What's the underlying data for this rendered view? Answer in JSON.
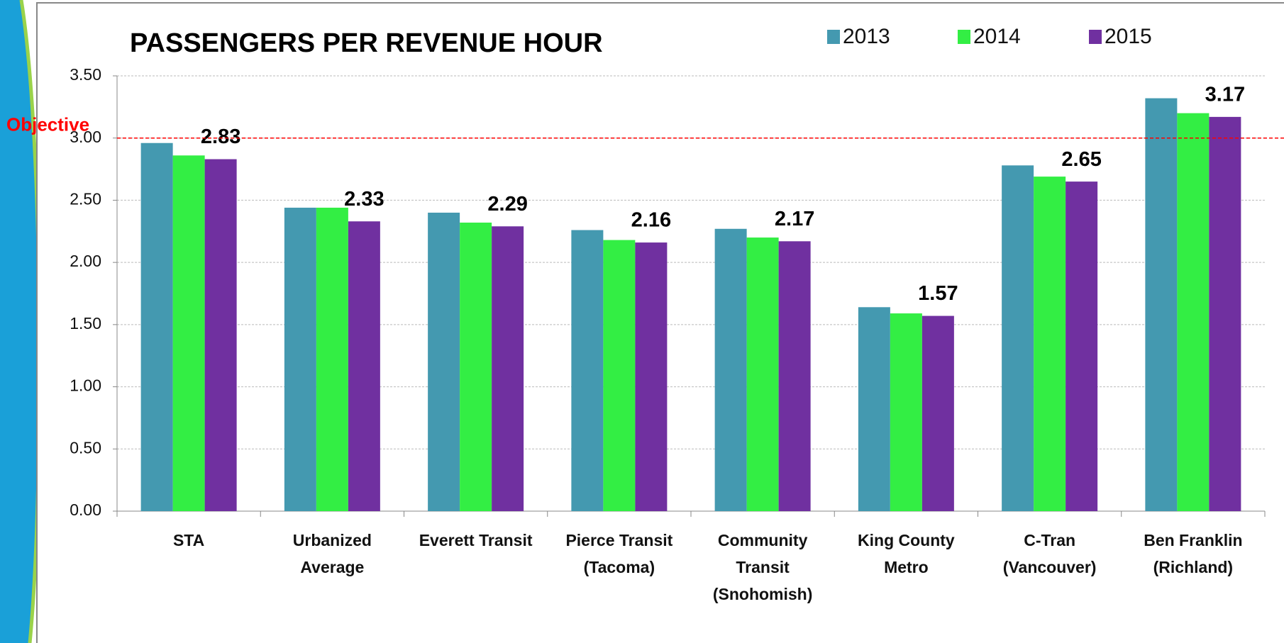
{
  "chart_data": {
    "type": "bar",
    "title": "PASSENGERS PER REVENUE HOUR",
    "categories": [
      "STA",
      "Urbanized\nAverage",
      "Everett Transit",
      "Pierce Transit\n(Tacoma)",
      "Community\nTransit\n(Snohomish)",
      "King County Metro",
      "C-Tran\n(Vancouver)",
      "Ben Franklin\n(Richland)"
    ],
    "series": [
      {
        "name": "2013",
        "color": "#4499b0",
        "values": [
          2.96,
          2.44,
          2.4,
          2.26,
          2.27,
          1.64,
          2.78,
          3.32
        ]
      },
      {
        "name": "2014",
        "color": "#33ee44",
        "values": [
          2.86,
          2.44,
          2.32,
          2.18,
          2.2,
          1.59,
          2.69,
          3.2
        ]
      },
      {
        "name": "2015",
        "color": "#7030a0",
        "values": [
          2.83,
          2.33,
          2.29,
          2.16,
          2.17,
          1.57,
          2.65,
          3.17
        ],
        "labeled": true
      }
    ],
    "ylim": [
      0,
      3.5
    ],
    "yticks": [
      {
        "value": 0,
        "label": "0.00"
      },
      {
        "value": 0.5,
        "label": "0.50"
      },
      {
        "value": 1,
        "label": "1.00"
      },
      {
        "value": 1.5,
        "label": "1.50"
      },
      {
        "value": 2,
        "label": "2.00"
      },
      {
        "value": 2.5,
        "label": "2.50"
      },
      {
        "value": 3,
        "label": "3.00"
      },
      {
        "value": 3.5,
        "label": "3.50"
      }
    ],
    "grid": true,
    "legend": "top-right",
    "objective": {
      "value": 3,
      "label": "Objective",
      "color": "#ff0000"
    }
  }
}
